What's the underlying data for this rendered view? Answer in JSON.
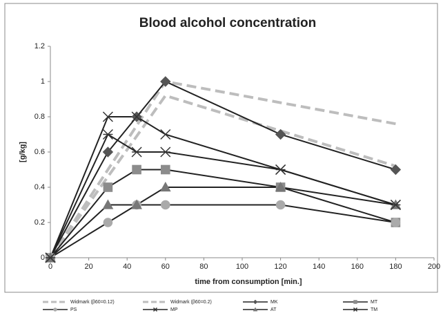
{
  "chart_data": {
    "type": "line",
    "title": "Blood alcohol concentration",
    "xlabel": "time from consumption [min.]",
    "ylabel": "[g/kg]",
    "xlim": [
      0,
      200
    ],
    "xticks": [
      0,
      20,
      40,
      60,
      80,
      100,
      120,
      140,
      160,
      180,
      200
    ],
    "ylim": [
      0,
      1.2
    ],
    "yticks": [
      0,
      0.2,
      0.4,
      0.6,
      0.8,
      1,
      1.2
    ],
    "series": [
      {
        "name": "Widmark (β60=0.12)",
        "color": "#bdbdbd",
        "dash": true,
        "marker": "none",
        "x": [
          0,
          60,
          180
        ],
        "values": [
          0,
          1.0,
          0.76
        ]
      },
      {
        "name": "Widmark (β60=0.2)",
        "color": "#bdbdbd",
        "dash": true,
        "marker": "none",
        "x": [
          0,
          60,
          180
        ],
        "values": [
          0,
          0.92,
          0.52
        ]
      },
      {
        "name": "MK",
        "color": "#222222",
        "marker": "diamond",
        "x": [
          0,
          30,
          45,
          60,
          120,
          180
        ],
        "values": [
          0,
          0.6,
          0.8,
          1.0,
          0.7,
          0.5
        ]
      },
      {
        "name": "MT",
        "color": "#222222",
        "marker": "square",
        "x": [
          0,
          30,
          45,
          60,
          120,
          180
        ],
        "values": [
          0,
          0.4,
          0.5,
          0.5,
          0.4,
          0.2
        ]
      },
      {
        "name": "PS",
        "color": "#222222",
        "marker": "circle",
        "x": [
          0,
          30,
          45,
          60,
          120,
          180
        ],
        "values": [
          0,
          0.2,
          0.3,
          0.3,
          0.3,
          0.2
        ]
      },
      {
        "name": "MP",
        "color": "#222222",
        "marker": "x",
        "x": [
          0,
          30,
          45,
          60,
          120,
          180
        ],
        "values": [
          0,
          0.8,
          0.8,
          0.7,
          0.5,
          0.3
        ]
      },
      {
        "name": "AT",
        "color": "#222222",
        "marker": "triangle",
        "x": [
          0,
          30,
          45,
          60,
          120,
          180
        ],
        "values": [
          0,
          0.3,
          0.3,
          0.4,
          0.4,
          0.3
        ]
      },
      {
        "name": "TM",
        "color": "#222222",
        "marker": "star",
        "x": [
          0,
          30,
          45,
          60,
          120,
          180
        ],
        "values": [
          0,
          0.7,
          0.6,
          0.6,
          0.5,
          0.3
        ]
      }
    ]
  }
}
